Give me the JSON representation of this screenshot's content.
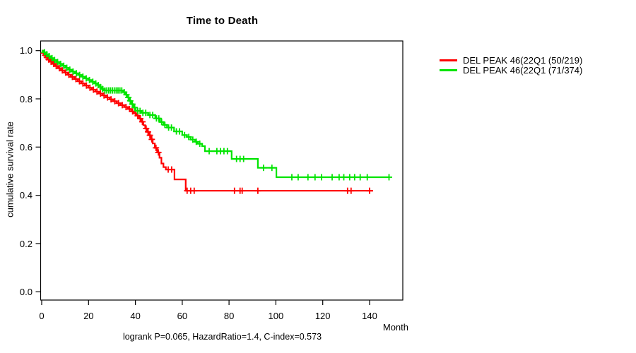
{
  "chart_data": {
    "type": "line",
    "subtype": "kaplan_meier_step_curve",
    "title": "Time to Death",
    "xlabel": "Month",
    "ylabel": "cumulative survival rate",
    "footnote": "logrank P=0.065, HazardRatio=1.4, C-index=0.573",
    "xlim": [
      0,
      154
    ],
    "ylim": [
      -0.034,
      1.04
    ],
    "xticks": [
      0,
      20,
      40,
      60,
      80,
      100,
      120,
      140
    ],
    "ytick_labels": [
      "0.0",
      "0.2",
      "0.4",
      "0.6",
      "0.8",
      "1.0"
    ],
    "grid": false,
    "legend_position": "right-outside",
    "axis_color": "#000000",
    "series": [
      {
        "name": "DEL PEAK 46(22Q1 (50/219)",
        "color": "#ff0000",
        "steps": [
          [
            0,
            1.0
          ],
          [
            0.5,
            0.99
          ],
          [
            1.2,
            0.981
          ],
          [
            1.9,
            0.972
          ],
          [
            2.6,
            0.963
          ],
          [
            3.6,
            0.954
          ],
          [
            4.6,
            0.945
          ],
          [
            5.7,
            0.936
          ],
          [
            6.9,
            0.927
          ],
          [
            8.2,
            0.918
          ],
          [
            9.6,
            0.909
          ],
          [
            11.0,
            0.9
          ],
          [
            12.4,
            0.891
          ],
          [
            13.9,
            0.882
          ],
          [
            15.4,
            0.873
          ],
          [
            16.9,
            0.864
          ],
          [
            18.4,
            0.855
          ],
          [
            19.9,
            0.846
          ],
          [
            21.4,
            0.838
          ],
          [
            22.9,
            0.83
          ],
          [
            24.4,
            0.822
          ],
          [
            25.9,
            0.814
          ],
          [
            27.4,
            0.806
          ],
          [
            28.9,
            0.798
          ],
          [
            30.4,
            0.79
          ],
          [
            32.0,
            0.782
          ],
          [
            33.6,
            0.774
          ],
          [
            35.2,
            0.766
          ],
          [
            36.8,
            0.758
          ],
          [
            38.2,
            0.748
          ],
          [
            39.4,
            0.74
          ],
          [
            40.6,
            0.73
          ],
          [
            41.6,
            0.718
          ],
          [
            42.6,
            0.705
          ],
          [
            43.4,
            0.691
          ],
          [
            44.2,
            0.677
          ],
          [
            45.0,
            0.663
          ],
          [
            45.8,
            0.649
          ],
          [
            46.6,
            0.632
          ],
          [
            47.4,
            0.615
          ],
          [
            48.3,
            0.597
          ],
          [
            49.3,
            0.578
          ],
          [
            50.3,
            0.556
          ],
          [
            51.1,
            0.532
          ],
          [
            52.0,
            0.517
          ],
          [
            53.0,
            0.507
          ],
          [
            56.7,
            0.466
          ],
          [
            61.5,
            0.419
          ],
          [
            141.5,
            0.419
          ]
        ],
        "censors": [
          [
            0.9,
            0.99
          ],
          [
            1.5,
            0.981
          ],
          [
            2.2,
            0.972
          ],
          [
            3.0,
            0.963
          ],
          [
            4.0,
            0.954
          ],
          [
            5.1,
            0.945
          ],
          [
            6.2,
            0.936
          ],
          [
            7.5,
            0.927
          ],
          [
            8.8,
            0.918
          ],
          [
            10.2,
            0.909
          ],
          [
            11.6,
            0.9
          ],
          [
            13.1,
            0.891
          ],
          [
            14.6,
            0.882
          ],
          [
            16.1,
            0.873
          ],
          [
            17.6,
            0.864
          ],
          [
            19.1,
            0.855
          ],
          [
            20.6,
            0.846
          ],
          [
            22.1,
            0.838
          ],
          [
            23.6,
            0.83
          ],
          [
            25.1,
            0.822
          ],
          [
            26.6,
            0.814
          ],
          [
            28.1,
            0.806
          ],
          [
            29.6,
            0.798
          ],
          [
            31.2,
            0.79
          ],
          [
            32.8,
            0.782
          ],
          [
            34.4,
            0.774
          ],
          [
            36.0,
            0.766
          ],
          [
            37.5,
            0.758
          ],
          [
            38.8,
            0.748
          ],
          [
            40.0,
            0.74
          ],
          [
            41.0,
            0.73
          ],
          [
            42.1,
            0.718
          ],
          [
            43.0,
            0.705
          ],
          [
            44.6,
            0.677
          ],
          [
            45.4,
            0.663
          ],
          [
            46.2,
            0.649
          ],
          [
            47.0,
            0.632
          ],
          [
            48.8,
            0.597
          ],
          [
            49.8,
            0.578
          ],
          [
            54.0,
            0.507
          ],
          [
            55.5,
            0.507
          ],
          [
            62.1,
            0.419
          ],
          [
            63.6,
            0.419
          ],
          [
            65.1,
            0.419
          ],
          [
            82.3,
            0.419
          ],
          [
            84.7,
            0.419
          ],
          [
            85.6,
            0.419
          ],
          [
            92.3,
            0.419
          ],
          [
            130.6,
            0.419
          ],
          [
            132.1,
            0.419
          ],
          [
            140.0,
            0.419
          ]
        ]
      },
      {
        "name": "DEL PEAK 46(22Q1 (71/374)",
        "color": "#00e400",
        "steps": [
          [
            0,
            1.0
          ],
          [
            0.8,
            0.993
          ],
          [
            1.8,
            0.985
          ],
          [
            2.8,
            0.977
          ],
          [
            3.9,
            0.969
          ],
          [
            5.0,
            0.961
          ],
          [
            6.2,
            0.953
          ],
          [
            7.5,
            0.945
          ],
          [
            8.8,
            0.937
          ],
          [
            10.1,
            0.929
          ],
          [
            11.4,
            0.921
          ],
          [
            12.8,
            0.913
          ],
          [
            14.2,
            0.906
          ],
          [
            15.6,
            0.899
          ],
          [
            17.0,
            0.892
          ],
          [
            18.4,
            0.885
          ],
          [
            19.8,
            0.878
          ],
          [
            21.2,
            0.871
          ],
          [
            22.6,
            0.864
          ],
          [
            23.8,
            0.857
          ],
          [
            24.8,
            0.849
          ],
          [
            25.6,
            0.841
          ],
          [
            26.4,
            0.835
          ],
          [
            34.8,
            0.828
          ],
          [
            35.8,
            0.817
          ],
          [
            36.6,
            0.806
          ],
          [
            37.3,
            0.792
          ],
          [
            38.2,
            0.778
          ],
          [
            39.2,
            0.764
          ],
          [
            40.2,
            0.75
          ],
          [
            42.5,
            0.742
          ],
          [
            45.5,
            0.733
          ],
          [
            48.5,
            0.719
          ],
          [
            50.5,
            0.704
          ],
          [
            52.0,
            0.692
          ],
          [
            53.5,
            0.681
          ],
          [
            56.5,
            0.665
          ],
          [
            60.0,
            0.65
          ],
          [
            62.0,
            0.642
          ],
          [
            63.6,
            0.631
          ],
          [
            65.5,
            0.622
          ],
          [
            66.6,
            0.614
          ],
          [
            68.5,
            0.604
          ],
          [
            69.7,
            0.583
          ],
          [
            81.1,
            0.551
          ],
          [
            92.3,
            0.514
          ],
          [
            100.2,
            0.475
          ],
          [
            148.6,
            0.475
          ]
        ],
        "censors": [
          [
            1.2,
            0.993
          ],
          [
            2.2,
            0.985
          ],
          [
            3.2,
            0.977
          ],
          [
            4.4,
            0.969
          ],
          [
            5.5,
            0.961
          ],
          [
            6.8,
            0.953
          ],
          [
            8.1,
            0.945
          ],
          [
            9.4,
            0.937
          ],
          [
            10.7,
            0.929
          ],
          [
            12.0,
            0.921
          ],
          [
            13.4,
            0.913
          ],
          [
            14.8,
            0.906
          ],
          [
            16.2,
            0.899
          ],
          [
            17.6,
            0.892
          ],
          [
            19.0,
            0.885
          ],
          [
            20.4,
            0.878
          ],
          [
            21.8,
            0.871
          ],
          [
            23.1,
            0.864
          ],
          [
            24.2,
            0.857
          ],
          [
            25.1,
            0.849
          ],
          [
            26.0,
            0.841
          ],
          [
            27.0,
            0.835
          ],
          [
            27.8,
            0.835
          ],
          [
            28.6,
            0.835
          ],
          [
            29.4,
            0.835
          ],
          [
            30.2,
            0.835
          ],
          [
            31.0,
            0.835
          ],
          [
            31.8,
            0.835
          ],
          [
            32.6,
            0.835
          ],
          [
            33.4,
            0.835
          ],
          [
            34.2,
            0.835
          ],
          [
            35.2,
            0.828
          ],
          [
            36.2,
            0.817
          ],
          [
            37.0,
            0.806
          ],
          [
            37.8,
            0.792
          ],
          [
            38.7,
            0.778
          ],
          [
            39.7,
            0.764
          ],
          [
            41.0,
            0.75
          ],
          [
            42.0,
            0.75
          ],
          [
            43.2,
            0.742
          ],
          [
            44.4,
            0.742
          ],
          [
            46.2,
            0.733
          ],
          [
            47.4,
            0.733
          ],
          [
            49.0,
            0.719
          ],
          [
            50.0,
            0.719
          ],
          [
            51.2,
            0.704
          ],
          [
            52.6,
            0.692
          ],
          [
            54.2,
            0.681
          ],
          [
            55.4,
            0.681
          ],
          [
            57.5,
            0.665
          ],
          [
            58.8,
            0.665
          ],
          [
            61.0,
            0.65
          ],
          [
            62.8,
            0.642
          ],
          [
            64.5,
            0.631
          ],
          [
            66.0,
            0.622
          ],
          [
            67.5,
            0.614
          ],
          [
            71.5,
            0.583
          ],
          [
            74.8,
            0.583
          ],
          [
            76.3,
            0.583
          ],
          [
            77.8,
            0.583
          ],
          [
            79.3,
            0.583
          ],
          [
            83.2,
            0.551
          ],
          [
            84.7,
            0.551
          ],
          [
            86.2,
            0.551
          ],
          [
            94.7,
            0.514
          ],
          [
            98.3,
            0.514
          ],
          [
            106.8,
            0.475
          ],
          [
            109.5,
            0.475
          ],
          [
            113.7,
            0.475
          ],
          [
            116.7,
            0.475
          ],
          [
            119.5,
            0.475
          ],
          [
            124.0,
            0.475
          ],
          [
            127.0,
            0.475
          ],
          [
            129.0,
            0.475
          ],
          [
            131.5,
            0.475
          ],
          [
            133.6,
            0.475
          ],
          [
            136.0,
            0.475
          ],
          [
            139.0,
            0.475
          ],
          [
            148.3,
            0.475
          ]
        ]
      }
    ]
  }
}
